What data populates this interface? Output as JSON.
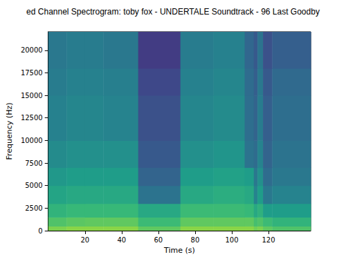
{
  "chart_data": {
    "type": "heatmap",
    "title": "ed Channel Spectrogram: toby fox - UNDERTALE Soundtrack - 96 Last Goodby",
    "x_label": "Time (s)",
    "y_label": "Frequency (Hz)",
    "xlim": [
      0,
      143
    ],
    "ylim": [
      0,
      22050
    ],
    "xticks": [
      20,
      40,
      60,
      80,
      100,
      120
    ],
    "yticks": [
      0,
      2500,
      5000,
      7500,
      10000,
      12500,
      15000,
      17500,
      20000
    ],
    "grid": false,
    "time_edges": [
      0,
      10,
      20,
      30,
      49,
      72,
      90,
      107,
      112,
      114,
      117,
      122,
      143
    ],
    "freq_edges": [
      0,
      500,
      1500,
      3000,
      5000,
      7000,
      10000,
      15000,
      18000,
      22050
    ],
    "cells": [
      [
        -20,
        -18,
        -18,
        -18,
        -25,
        -18,
        -18,
        -18,
        -22,
        -20,
        -25,
        -28
      ],
      [
        -28,
        -26,
        -25,
        -25,
        -32,
        -25,
        -25,
        -25,
        -30,
        -28,
        -32,
        -35
      ],
      [
        -35,
        -33,
        -33,
        -33,
        -40,
        -32,
        -32,
        -33,
        -40,
        -36,
        -45,
        -45
      ],
      [
        -42,
        -40,
        -40,
        -40,
        -62,
        -40,
        -38,
        -40,
        -55,
        -45,
        -60,
        -55
      ],
      [
        -47,
        -45,
        -45,
        -45,
        -68,
        -45,
        -43,
        -45,
        -60,
        -50,
        -65,
        -60
      ],
      [
        -52,
        -50,
        -50,
        -50,
        -72,
        -50,
        -48,
        -62,
        -65,
        -55,
        -68,
        -62
      ],
      [
        -56,
        -54,
        -54,
        -55,
        -75,
        -54,
        -52,
        -64,
        -68,
        -58,
        -70,
        -64
      ],
      [
        -58,
        -56,
        -56,
        -57,
        -78,
        -56,
        -54,
        -65,
        -70,
        -60,
        -72,
        -66
      ],
      [
        -60,
        -58,
        -58,
        -60,
        -82,
        -58,
        -56,
        -67,
        -72,
        -62,
        -75,
        -70
      ]
    ],
    "zlim": [
      -100,
      0
    ]
  }
}
